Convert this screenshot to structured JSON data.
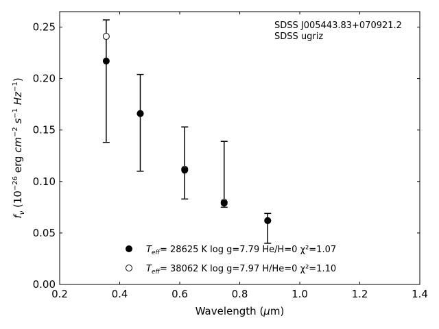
{
  "chart_data": {
    "type": "scatter",
    "xlabel": "Wavelength (μm)",
    "ylabel": "f_ν (10^-26 erg cm^-2 s^-1 Hz^-1)",
    "xlim": [
      0.2,
      1.4
    ],
    "ylim": [
      0.0,
      0.265
    ],
    "x_ticks": [
      0.2,
      0.4,
      0.6,
      0.8,
      1.0,
      1.2,
      1.4
    ],
    "x_tick_labels": [
      "0.2",
      "0.4",
      "0.6",
      "0.8",
      "1.0",
      "1.2",
      "1.4"
    ],
    "y_ticks": [
      0.0,
      0.05,
      0.1,
      0.15,
      0.2,
      0.25
    ],
    "y_tick_labels": [
      "0.00",
      "0.05",
      "0.10",
      "0.15",
      "0.20",
      "0.25"
    ],
    "annotation": [
      "SDSS J005443.83+070921.2",
      "SDSS ugriz"
    ],
    "observed": {
      "x": [
        0.3551,
        0.4686,
        0.6166,
        0.748,
        0.8932
      ],
      "err_low": [
        0.138,
        0.11,
        0.083,
        0.075,
        0.04
      ],
      "err_high": [
        0.257,
        0.204,
        0.153,
        0.139,
        0.069
      ]
    },
    "series": [
      {
        "marker": "filled",
        "legend": {
          "prefix": "T",
          "sub": "eff",
          "text": "= 28625 K  log g=7.79  He/H=0  χ²=1.07"
        },
        "x": [
          0.3551,
          0.4686,
          0.6166,
          0.748,
          0.8932
        ],
        "y": [
          0.217,
          0.166,
          0.111,
          0.079,
          0.062
        ]
      },
      {
        "marker": "open",
        "legend": {
          "prefix": "T",
          "sub": "eff",
          "text": "= 38062 K  log g=7.97  H/He=0  χ²=1.10"
        },
        "x": [
          0.3551,
          0.4686,
          0.6166,
          0.748,
          0.8932
        ],
        "y": [
          0.241,
          0.166,
          0.112,
          0.08,
          0.062
        ]
      }
    ],
    "colors": {
      "axis": "#000000",
      "marker": "#000000",
      "open_fill": "#ffffff"
    }
  }
}
